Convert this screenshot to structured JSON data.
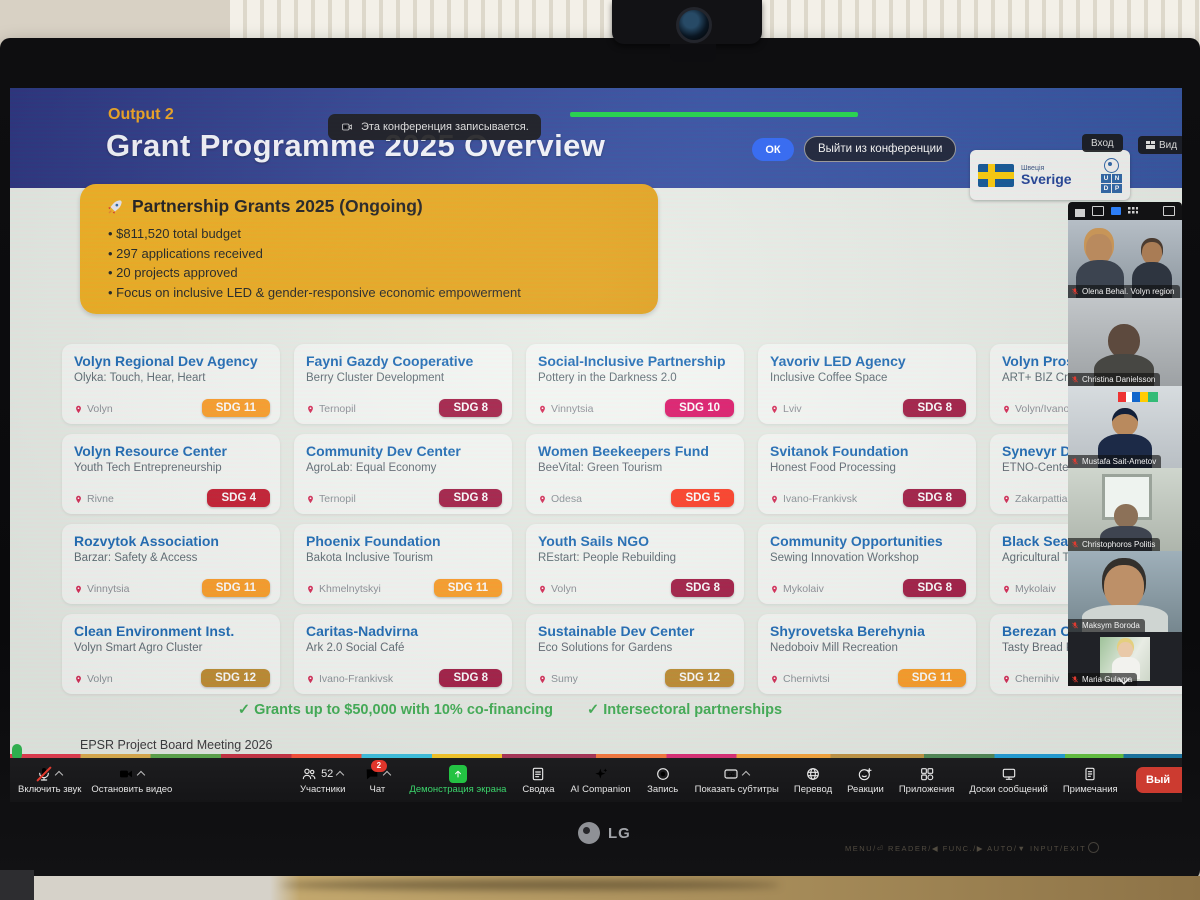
{
  "zoom_ui": {
    "recording_notice": "Эта конференция записывается.",
    "ok_button": "ОК",
    "leave_conference_button": "Выйти из конференции",
    "join_button": "Вход",
    "view_button": "Вид",
    "leave_button_short": "Вый",
    "toolbar": [
      {
        "icon": "mic",
        "label": "Включить звук",
        "caret": true,
        "muted": true,
        "group": "left"
      },
      {
        "icon": "camera",
        "label": "Остановить видео",
        "caret": true,
        "group": "left"
      },
      {
        "icon": "participants",
        "label": "Участники",
        "count": "52",
        "caret": true
      },
      {
        "icon": "chat",
        "label": "Чат",
        "badge": "2",
        "caret": true
      },
      {
        "icon": "share",
        "label": "Демонстрация экрана",
        "accent": true
      },
      {
        "icon": "summary",
        "label": "Сводка"
      },
      {
        "icon": "ai",
        "label": "AI Companion"
      },
      {
        "icon": "record",
        "label": "Запись"
      },
      {
        "icon": "captions",
        "label": "Показать субтитры",
        "caret": true
      },
      {
        "icon": "globe",
        "label": "Перевод"
      },
      {
        "icon": "reactions",
        "label": "Реакции"
      },
      {
        "icon": "apps",
        "label": "Приложения"
      },
      {
        "icon": "boards",
        "label": "Доски сообщений"
      },
      {
        "icon": "notes",
        "label": "Примечания"
      }
    ],
    "participants": [
      {
        "name": "Olena Behal. Volyn region",
        "muted": true,
        "style": "two-people"
      },
      {
        "name": "Christina Danielsson",
        "muted": true,
        "style": "gray"
      },
      {
        "name": "Mustafa Sait-Ametov",
        "muted": true,
        "style": "office"
      },
      {
        "name": "Christophoros Politis",
        "muted": true,
        "style": "window"
      },
      {
        "name": "Maksym Boroda",
        "muted": true,
        "style": "closeup"
      },
      {
        "name": "Maria Gulama",
        "muted": true,
        "style": "photo-card"
      }
    ]
  },
  "slide": {
    "output_label": "Output 2",
    "title": "Grant Programme 2025 Overview",
    "partner_logo": {
      "country_native": "Швеція",
      "country": "Sverige",
      "org_letters": [
        "U",
        "N",
        "D",
        "P"
      ]
    },
    "highlight": {
      "title": "Partnership Grants 2025 (Ongoing)",
      "bullets": [
        "$811,520 total budget",
        "297 applications received",
        "20 projects approved",
        "Focus on inclusive LED & gender-responsive economic empowerment"
      ]
    },
    "cards": [
      {
        "title": "Volyn Regional Dev Agency",
        "subtitle": "Olyka: Touch, Hear, Heart",
        "location": "Volyn",
        "sdg": "SDG 11",
        "badge_color": "#FD9D24"
      },
      {
        "title": "Fayni Gazdy Cooperative",
        "subtitle": "Berry Cluster Development",
        "location": "Ternopil",
        "sdg": "SDG 8",
        "badge_color": "#A21942"
      },
      {
        "title": "Social-Inclusive Partnership",
        "subtitle": "Pottery in the Darkness 2.0",
        "location": "Vinnytsia",
        "sdg": "SDG 10",
        "badge_color": "#DD1367"
      },
      {
        "title": "Yavoriv LED Agency",
        "subtitle": "Inclusive Coffee Space",
        "location": "Lviv",
        "sdg": "SDG 8",
        "badge_color": "#A21942"
      },
      {
        "title": "Volyn Prospect",
        "subtitle": "ART+ BIZ Creative S",
        "location": "Volyn/Ivano-Frankivs",
        "sdg": null,
        "badge_color": null
      },
      {
        "title": "Volyn Resource Center",
        "subtitle": "Youth Tech Entrepreneurship",
        "location": "Rivne",
        "sdg": "SDG 4",
        "badge_color": "#C5192D"
      },
      {
        "title": "Community Dev Center",
        "subtitle": "AgroLab: Equal Economy",
        "location": "Ternopil",
        "sdg": "SDG 8",
        "badge_color": "#A21942"
      },
      {
        "title": "Women Beekeepers Fund",
        "subtitle": "BeeVital: Green Tourism",
        "location": "Odesa",
        "sdg": "SDG 5",
        "badge_color": "#FF3A21"
      },
      {
        "title": "Svitanok Foundation",
        "subtitle": "Honest Food Processing",
        "location": "Ivano-Frankivsk",
        "sdg": "SDG 8",
        "badge_color": "#A21942"
      },
      {
        "title": "Synevyr Dev Ag",
        "subtitle": "ETNO-Center Partne",
        "location": "Zakarpattia",
        "sdg": null,
        "badge_color": null
      },
      {
        "title": "Rozvytok Association",
        "subtitle": "Barzar: Safety & Access",
        "location": "Vinnytsia",
        "sdg": "SDG 11",
        "badge_color": "#FD9D24"
      },
      {
        "title": "Phoenix Foundation",
        "subtitle": "Bakota Inclusive Tourism",
        "location": "Khmelnytskyi",
        "sdg": "SDG 11",
        "badge_color": "#FD9D24"
      },
      {
        "title": "Youth Sails NGO",
        "subtitle": "REstart: People Rebuilding",
        "location": "Volyn",
        "sdg": "SDG 8",
        "badge_color": "#A21942"
      },
      {
        "title": "Community Opportunities",
        "subtitle": "Sewing Innovation Workshop",
        "location": "Mykolaiv",
        "sdg": "SDG 8",
        "badge_color": "#A21942"
      },
      {
        "title": "Black Sea Win",
        "subtitle": "Agricultural Tractor C",
        "location": "Mykolaiv",
        "sdg": null,
        "badge_color": null
      },
      {
        "title": "Clean Environment Inst.",
        "subtitle": "Volyn Smart Agro Cluster",
        "location": "Volyn",
        "sdg": "SDG 12",
        "badge_color": "#BF8B2E"
      },
      {
        "title": "Caritas-Nadvirna",
        "subtitle": "Ark 2.0 Social Café",
        "location": "Ivano-Frankivsk",
        "sdg": "SDG 8",
        "badge_color": "#A21942"
      },
      {
        "title": "Sustainable Dev Center",
        "subtitle": "Eco Solutions for Gardens",
        "location": "Sumy",
        "sdg": "SDG 12",
        "badge_color": "#BF8B2E"
      },
      {
        "title": "Shyrovetska Berehynia",
        "subtitle": "Nedoboiv Mill Recreation",
        "location": "Chernivtsi",
        "sdg": "SDG 11",
        "badge_color": "#FD9D24"
      },
      {
        "title": "Berezan Comm",
        "subtitle": "Tasty Bread Project",
        "location": "Chernihiv",
        "sdg": null,
        "badge_color": null
      }
    ],
    "footnotes": [
      "✓ Grants up to $50,000 with 10% co-financing",
      "✓ Intersectoral partnerships"
    ],
    "footer": "EPSR Project Board Meeting 2026"
  },
  "monitor": {
    "brand": "LG",
    "bezel_controls": "MENU/⏎   READER/◀   FUNC./▶   AUTO/▼   INPUT/EXIT"
  }
}
